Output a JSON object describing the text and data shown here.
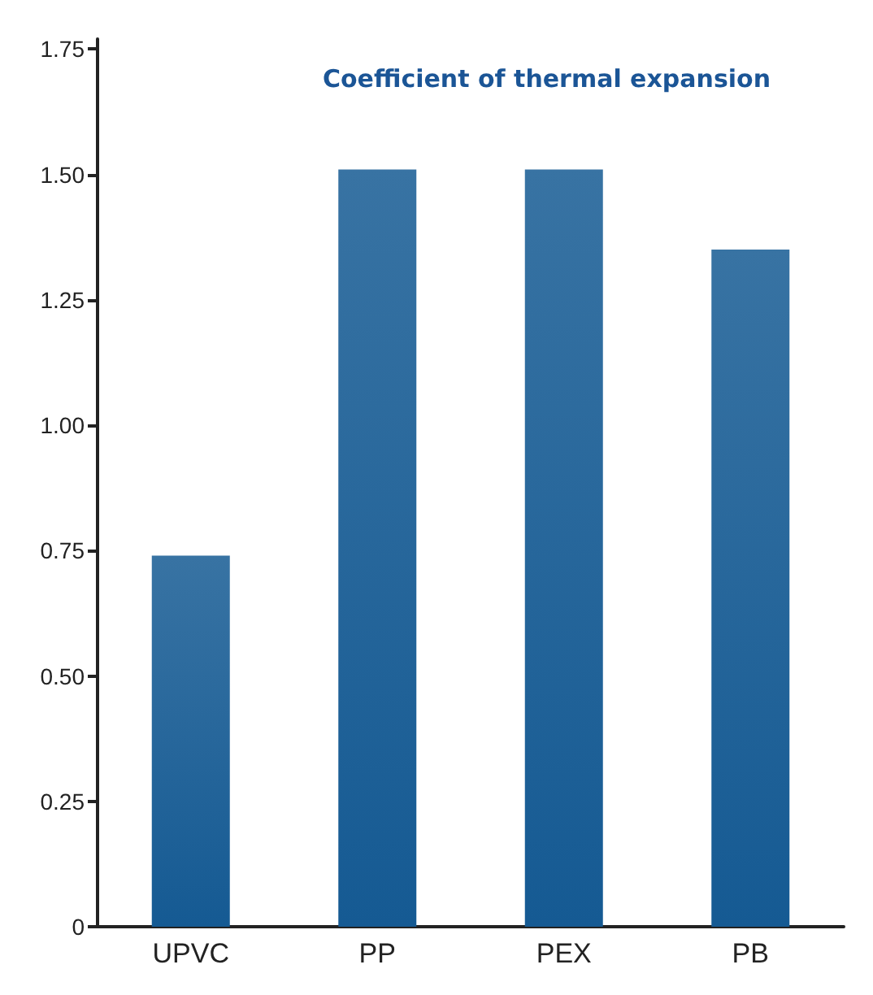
{
  "chart_data": {
    "type": "bar",
    "title": "Coefficient of thermal expansion",
    "categories": [
      "UPVC",
      "PP",
      "PEX",
      "PB"
    ],
    "values": [
      0.74,
      1.51,
      1.51,
      1.35
    ],
    "color": "#155a93",
    "ylim": [
      0,
      1.77
    ],
    "yticks": [
      0,
      {
        "value": 0.25,
        "label": "0.25"
      },
      {
        "value": 0.5,
        "label": "0.50"
      },
      {
        "value": 0.75,
        "label": "0.75"
      },
      {
        "value": 1,
        "label": "1.00"
      },
      {
        "value": 1.25,
        "label": "1.25"
      },
      {
        "value": 1.5,
        "label": "1.50"
      },
      {
        "value": 1.75,
        "label": "1.75"
      }
    ],
    "grid": false
  }
}
